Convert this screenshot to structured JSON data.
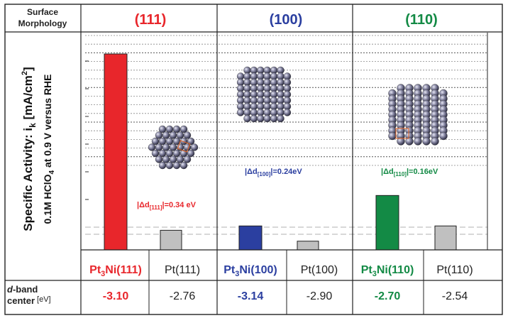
{
  "chart_data": {
    "type": "bar",
    "ylabel_line1": "Specific Activity: i",
    "ylabel_sub1": "k",
    "ylabel_unit1": " [mA/cm",
    "ylabel_sup1": "2",
    "ylabel_end1": "]",
    "ylabel_line2a": "0.1M HClO",
    "ylabel_sub2": "4",
    "ylabel_line2b": " at 0.9 V versus RHE",
    "header_label": "Surface Morphology",
    "header_label_1": "Surface",
    "header_label_2": "Morphology",
    "dband_label_1": "d",
    "dband_label_1b": "-band",
    "dband_label_2": "center",
    "dband_unit": "[eV]",
    "ylim": [
      0,
      18
    ],
    "colors": {
      "red": "#e8262b",
      "blue": "#2b3fa0",
      "green": "#138a45",
      "gray": "#c0c0c0",
      "red_text": "#e8262b",
      "blue_text": "#2b3fa0",
      "green_text": "#138a45"
    },
    "panels": [
      {
        "title": "(111)",
        "color_key": "red",
        "bars": [
          {
            "label_main": "Pt",
            "label_sub": "3",
            "label_rest": "Ni(111)",
            "value": 18.0,
            "color_key": "red",
            "dband": "-3.10"
          },
          {
            "label_main": "Pt(111)",
            "label_sub": "",
            "label_rest": "",
            "value": 1.8,
            "color_key": "gray",
            "dband": "-2.76"
          }
        ],
        "annotation_pre": "|Δd",
        "annotation_sub": "[111]",
        "annotation_post": "|=0.34 eV"
      },
      {
        "title": "(100)",
        "color_key": "blue",
        "bars": [
          {
            "label_main": "Pt",
            "label_sub": "3",
            "label_rest": "Ni(100)",
            "value": 2.2,
            "color_key": "blue",
            "dband": "-3.14"
          },
          {
            "label_main": "Pt(100)",
            "label_sub": "",
            "label_rest": "",
            "value": 0.8,
            "color_key": "gray",
            "dband": "-2.90"
          }
        ],
        "annotation_pre": "|Δd",
        "annotation_sub": "[100]",
        "annotation_post": "|=0.24eV"
      },
      {
        "title": "(110)",
        "color_key": "green",
        "bars": [
          {
            "label_main": "Pt",
            "label_sub": "3",
            "label_rest": "Ni(110)",
            "value": 5.0,
            "color_key": "green",
            "dband": "-2.70"
          },
          {
            "label_main": "Pt(110)",
            "label_sub": "",
            "label_rest": "",
            "value": 2.2,
            "color_key": "gray",
            "dband": "-2.54"
          }
        ],
        "annotation_pre": "|Δd",
        "annotation_sub": "[110]",
        "annotation_post": "|=0.16eV"
      }
    ]
  }
}
